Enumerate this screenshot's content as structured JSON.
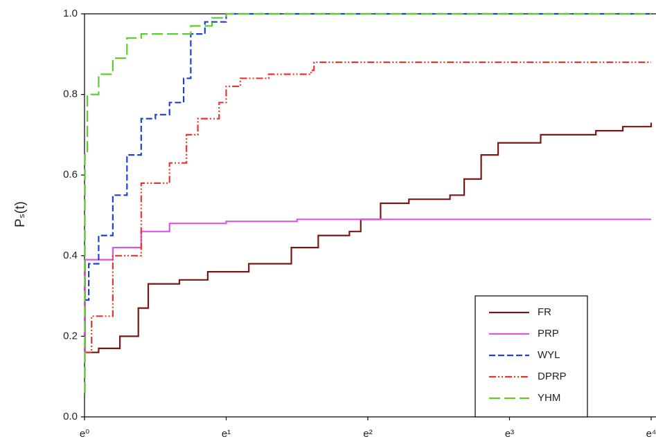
{
  "chart_data": {
    "type": "line",
    "y_label": "Pₛ(t)",
    "xlim": [
      0,
      4
    ],
    "ylim": [
      0,
      1
    ],
    "xticks": [
      {
        "value": 0,
        "label": "e⁰"
      },
      {
        "value": 1,
        "label": "e¹"
      },
      {
        "value": 2,
        "label": "e²"
      },
      {
        "value": 3,
        "label": "e³"
      },
      {
        "value": 4,
        "label": "e⁴"
      }
    ],
    "yticks": [
      {
        "value": 0,
        "label": "0.0"
      },
      0.2,
      0.4,
      0.6,
      0.8,
      {
        "value": 1,
        "label": "1.0"
      }
    ],
    "legend": "lower-right",
    "series": [
      {
        "name": "FR",
        "color": "#7b1616",
        "dash": "solid",
        "x": [
          0,
          0.1,
          0.25,
          0.38,
          0.45,
          0.67,
          0.87,
          1.16,
          1.46,
          1.65,
          1.87,
          1.95,
          2.09,
          2.29,
          2.58,
          2.68,
          2.8,
          2.92,
          3.22,
          3.61,
          3.8,
          4
        ],
        "values": [
          0.16,
          0.17,
          0.2,
          0.27,
          0.33,
          0.34,
          0.36,
          0.38,
          0.42,
          0.45,
          0.46,
          0.49,
          0.53,
          0.54,
          0.55,
          0.59,
          0.65,
          0.68,
          0.7,
          0.71,
          0.72,
          0.73
        ]
      },
      {
        "name": "PRP",
        "color": "#e055e0",
        "dash": "solid",
        "x": [
          0,
          0.005,
          0.15,
          0.2,
          0.4,
          0.6,
          1,
          1.5,
          4
        ],
        "values": [
          0.16,
          0.39,
          0.39,
          0.42,
          0.46,
          0.48,
          0.485,
          0.49,
          0.49
        ]
      },
      {
        "name": "WYL",
        "color": "#1f3fd8",
        "dash": "dashed",
        "x": [
          0,
          0.03,
          0.1,
          0.2,
          0.3,
          0.4,
          0.5,
          0.6,
          0.7,
          0.75,
          0.85,
          1,
          4
        ],
        "values": [
          0.29,
          0.38,
          0.45,
          0.55,
          0.65,
          0.74,
          0.75,
          0.78,
          0.84,
          0.95,
          0.98,
          1,
          1
        ]
      },
      {
        "name": "DPRP",
        "color": "#e8352a",
        "dash": "dash-dot-dot",
        "x": [
          0,
          0.05,
          0.2,
          0.4,
          0.6,
          0.72,
          0.8,
          0.95,
          1,
          1.1,
          1.3,
          1.6,
          1.62,
          4
        ],
        "values": [
          0.16,
          0.25,
          0.4,
          0.58,
          0.63,
          0.7,
          0.74,
          0.78,
          0.82,
          0.84,
          0.85,
          0.86,
          0.88,
          0.88
        ]
      },
      {
        "name": "YHM",
        "color": "#5ccc2c",
        "dash": "long-dash",
        "x": [
          0,
          0.003,
          0.02,
          0.1,
          0.2,
          0.3,
          0.4,
          0.65,
          0.75,
          0.9,
          1,
          4
        ],
        "values": [
          0.06,
          0.65,
          0.8,
          0.85,
          0.89,
          0.94,
          0.95,
          0.95,
          0.97,
          0.99,
          1,
          1
        ]
      }
    ]
  }
}
